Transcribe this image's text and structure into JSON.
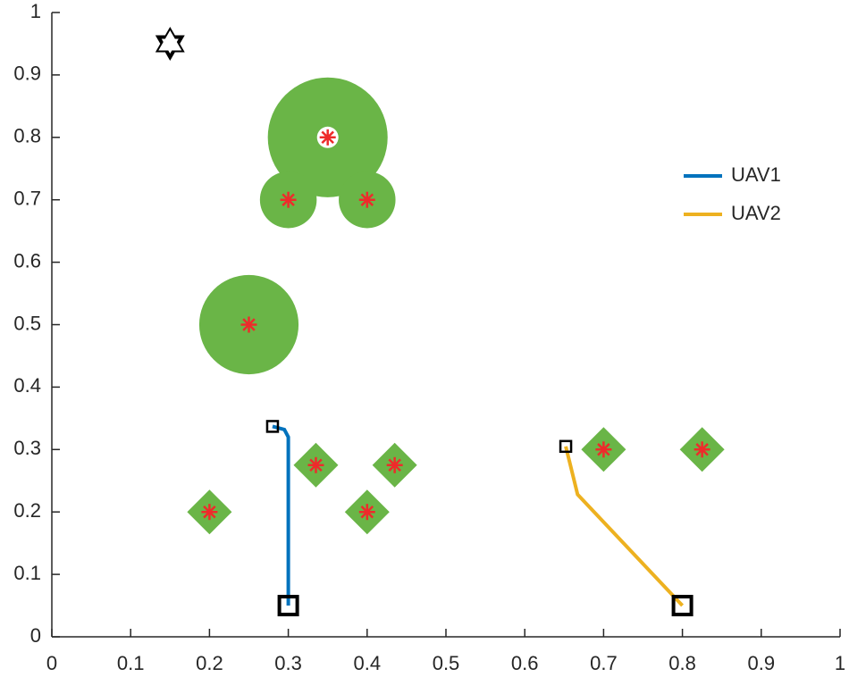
{
  "chart_data": {
    "type": "line",
    "series": [
      {
        "name": "UAV1",
        "color": "#0072BD",
        "x": [
          0.28,
          0.295,
          0.3,
          0.3
        ],
        "values": [
          0.337,
          0.332,
          0.32,
          0.05
        ]
      },
      {
        "name": "UAV2",
        "color": "#EDB120",
        "x": [
          0.652,
          0.667,
          0.8
        ],
        "values": [
          0.305,
          0.228,
          0.05
        ]
      }
    ],
    "threats": [
      {
        "x": 0.35,
        "y": 0.8,
        "r": 0.076
      },
      {
        "x": 0.3,
        "y": 0.7,
        "r": 0.036
      },
      {
        "x": 0.4,
        "y": 0.7,
        "r": 0.036
      },
      {
        "x": 0.25,
        "y": 0.5,
        "r": 0.063
      }
    ],
    "threat_color": "#6ab547",
    "targets": {
      "x": [
        0.2,
        0.335,
        0.4,
        0.435,
        0.7,
        0.825
      ],
      "y": [
        0.2,
        0.275,
        0.2,
        0.275,
        0.3,
        0.3
      ]
    },
    "base": {
      "x": 0.15,
      "y": 0.95
    },
    "xlim": [
      0,
      1
    ],
    "ylim": [
      0,
      1
    ],
    "xticks": [
      0,
      0.1,
      0.2,
      0.3,
      0.4,
      0.5,
      0.6,
      0.7,
      0.8,
      0.9,
      1
    ],
    "yticks": [
      0,
      0.1,
      0.2,
      0.3,
      0.4,
      0.5,
      0.6,
      0.7,
      0.8,
      0.9,
      1
    ],
    "legend": "upper right"
  }
}
